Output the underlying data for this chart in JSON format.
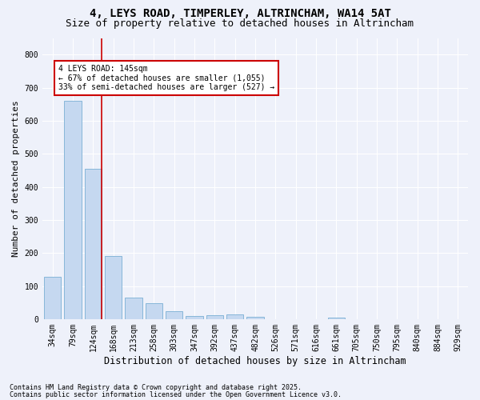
{
  "title": "4, LEYS ROAD, TIMPERLEY, ALTRINCHAM, WA14 5AT",
  "subtitle": "Size of property relative to detached houses in Altrincham",
  "xlabel": "Distribution of detached houses by size in Altrincham",
  "ylabel": "Number of detached properties",
  "categories": [
    "34sqm",
    "79sqm",
    "124sqm",
    "168sqm",
    "213sqm",
    "258sqm",
    "303sqm",
    "347sqm",
    "392sqm",
    "437sqm",
    "482sqm",
    "526sqm",
    "571sqm",
    "616sqm",
    "661sqm",
    "705sqm",
    "750sqm",
    "795sqm",
    "840sqm",
    "884sqm",
    "929sqm"
  ],
  "values": [
    128,
    660,
    455,
    190,
    65,
    48,
    25,
    10,
    12,
    13,
    6,
    0,
    0,
    0,
    5,
    0,
    0,
    0,
    0,
    0,
    0
  ],
  "bar_color": "#c5d8f0",
  "bar_edge_color": "#7aafd4",
  "vline_index": 2,
  "vline_color": "#cc0000",
  "annotation_title": "4 LEYS ROAD: 145sqm",
  "annotation_line1": "← 67% of detached houses are smaller (1,055)",
  "annotation_line2": "33% of semi-detached houses are larger (527) →",
  "annotation_box_color": "#cc0000",
  "ylim_max": 850,
  "footnote1": "Contains HM Land Registry data © Crown copyright and database right 2025.",
  "footnote2": "Contains public sector information licensed under the Open Government Licence v3.0.",
  "bg_color": "#eef1fa",
  "grid_color": "#ffffff",
  "title_fontsize": 10,
  "subtitle_fontsize": 9,
  "ylabel_fontsize": 8,
  "xlabel_fontsize": 8.5,
  "tick_fontsize": 7,
  "annot_fontsize": 7,
  "footnote_fontsize": 6
}
